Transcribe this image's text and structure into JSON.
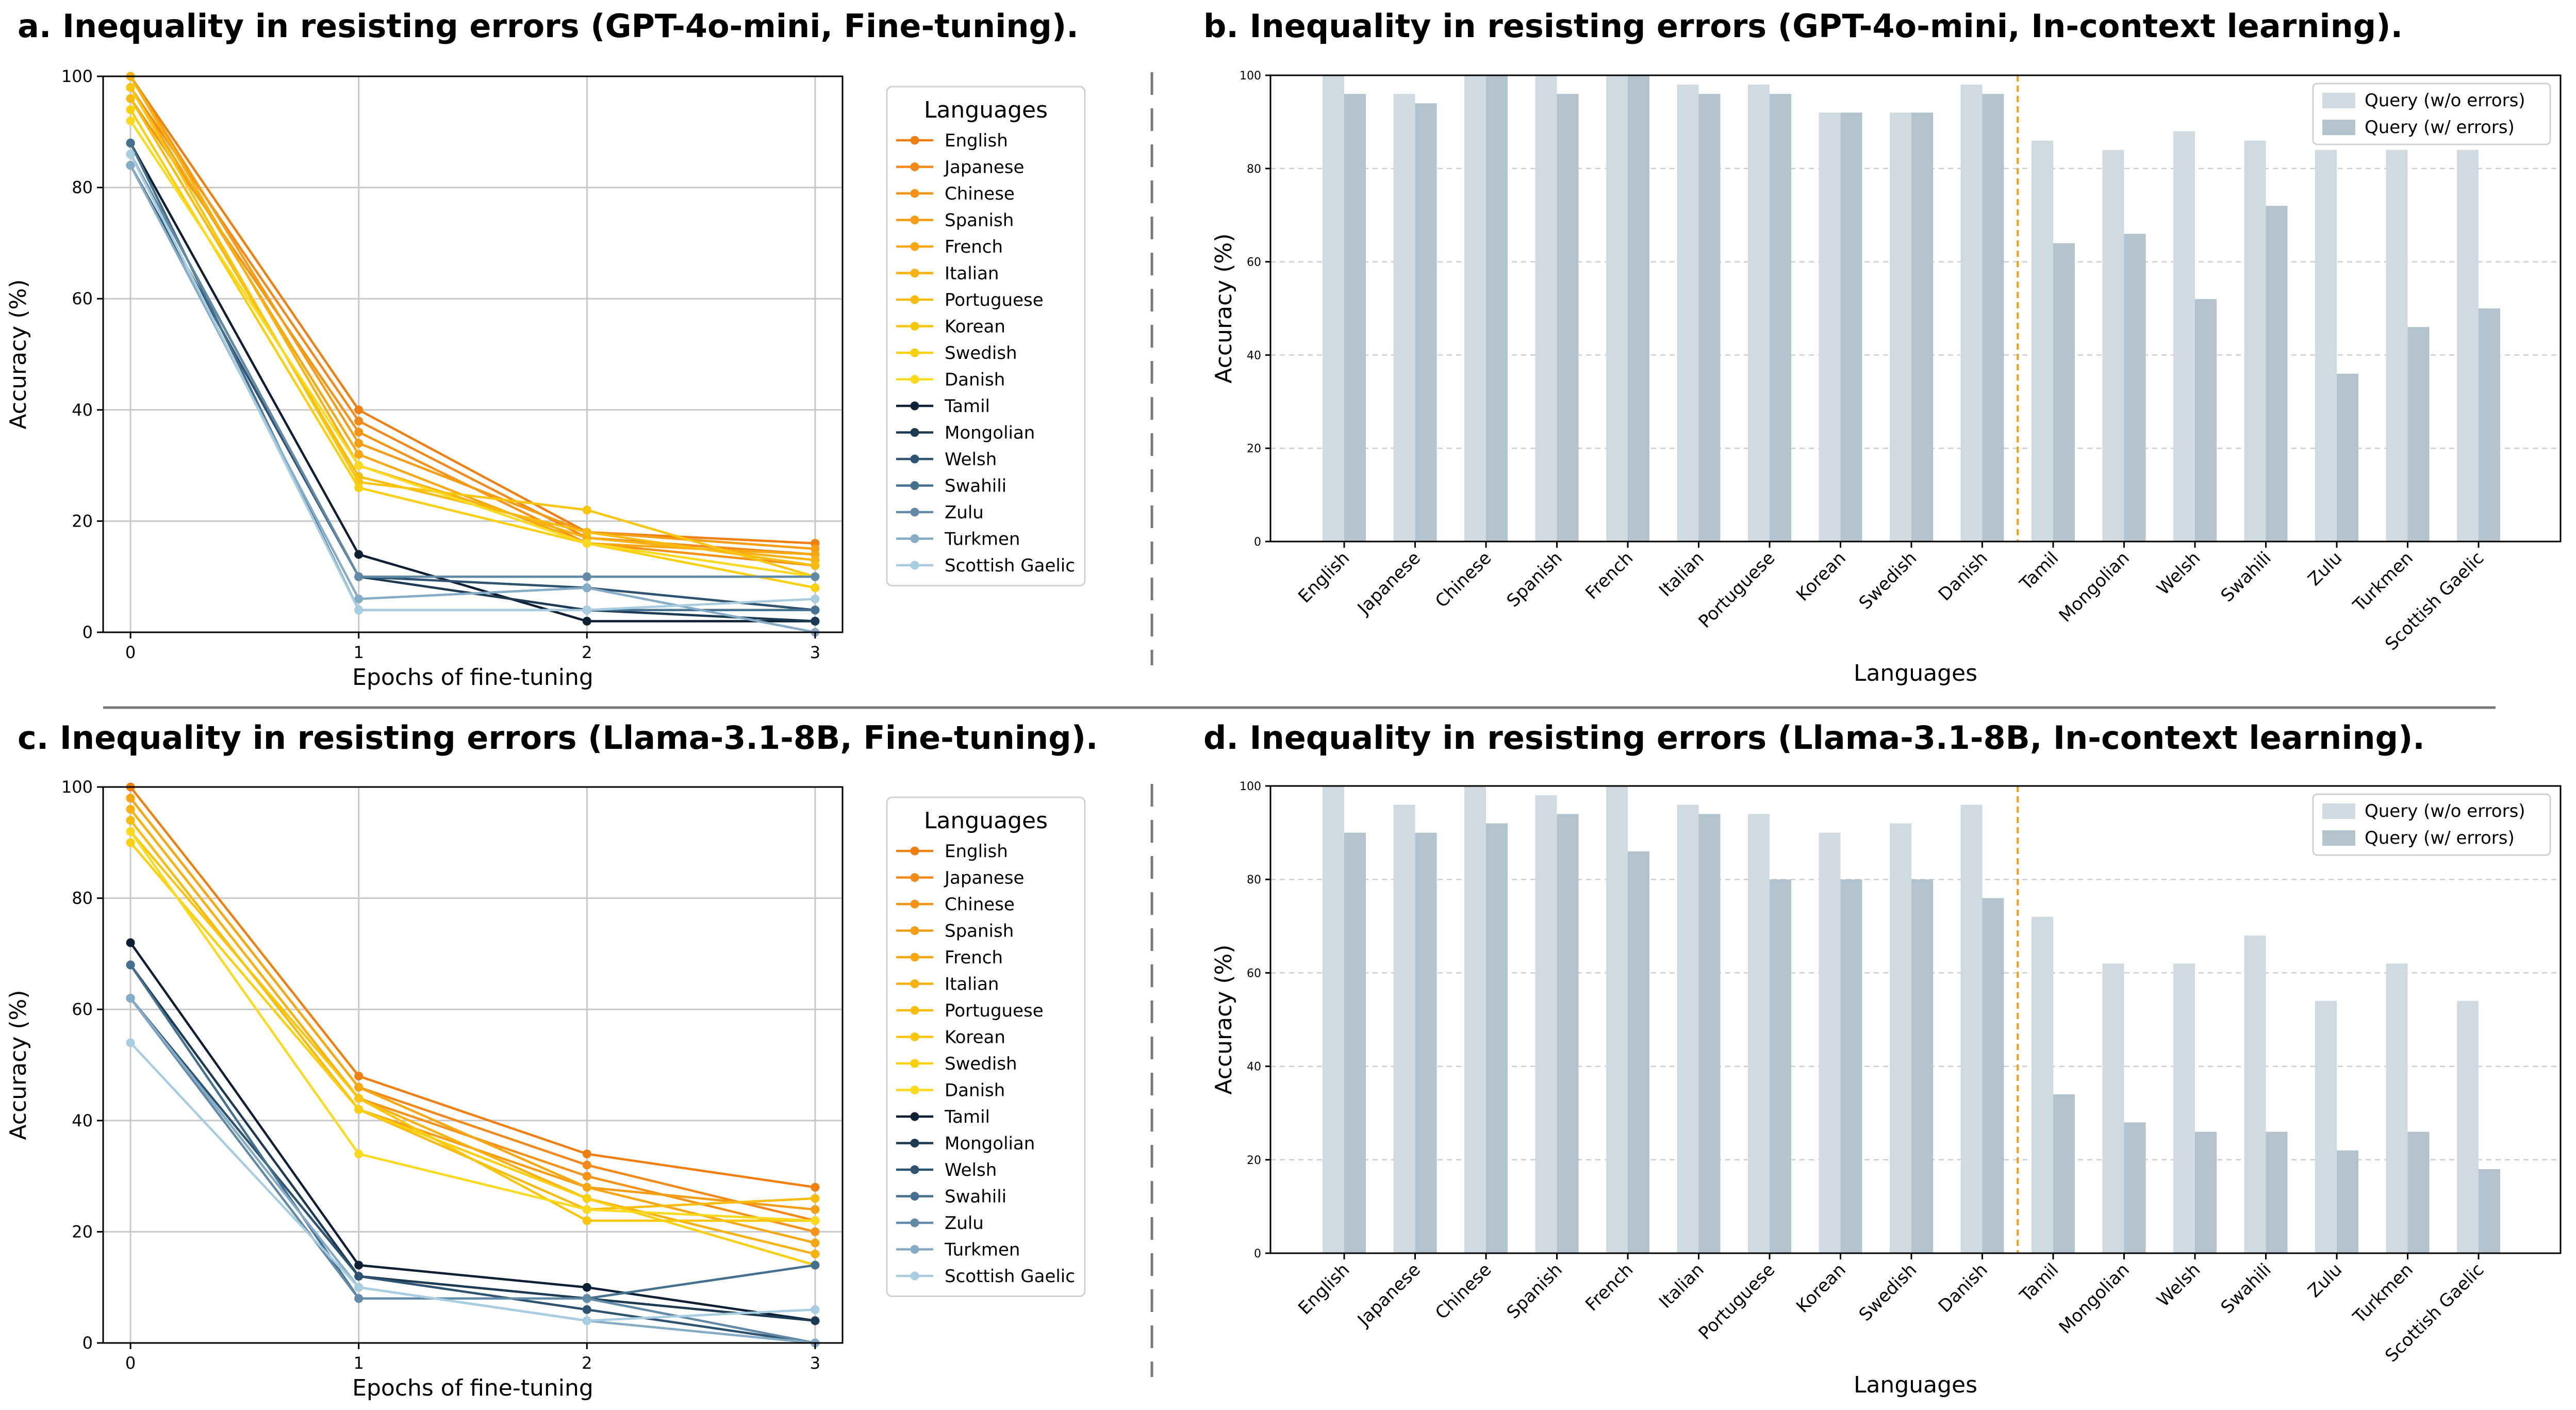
{
  "chart_data": [
    {
      "type": "line",
      "title": "a. Inequality in resisting errors (GPT-4o-mini, Fine-tuning).",
      "xlabel": "Epochs of fine-tuning",
      "ylabel": "Accuracy (%)",
      "x": [
        0,
        1,
        2,
        3
      ],
      "xticks": [
        "0",
        "1",
        "2",
        "3"
      ],
      "yticks": [
        "0",
        "20",
        "40",
        "60",
        "80",
        "100"
      ],
      "ylim": [
        0,
        100
      ],
      "grid": true,
      "legend_title": "Languages",
      "legend_position": "outside right",
      "series": [
        {
          "name": "English",
          "color": "#F07F12",
          "values": [
            100,
            40,
            18,
            16
          ]
        },
        {
          "name": "Japanese",
          "color": "#F3891B",
          "values": [
            98,
            38,
            17,
            14
          ]
        },
        {
          "name": "Chinese",
          "color": "#F49318",
          "values": [
            96,
            36,
            16,
            12
          ]
        },
        {
          "name": "Spanish",
          "color": "#F59D15",
          "values": [
            100,
            34,
            18,
            15
          ]
        },
        {
          "name": "French",
          "color": "#F6A712",
          "values": [
            98,
            32,
            16,
            14
          ]
        },
        {
          "name": "Italian",
          "color": "#F7B110",
          "values": [
            100,
            30,
            17,
            13
          ]
        },
        {
          "name": "Portuguese",
          "color": "#F8BB0F",
          "values": [
            96,
            28,
            18,
            12
          ]
        },
        {
          "name": "Korean",
          "color": "#F9C50E",
          "values": [
            98,
            27,
            22,
            10
          ]
        },
        {
          "name": "Swedish",
          "color": "#FACF0E",
          "values": [
            94,
            26,
            16,
            8
          ]
        },
        {
          "name": "Danish",
          "color": "#FBD91F",
          "values": [
            92,
            30,
            16,
            10
          ]
        },
        {
          "name": "Tamil",
          "color": "#0D1F33",
          "values": [
            88,
            14,
            2,
            2
          ]
        },
        {
          "name": "Mongolian",
          "color": "#1C3A52",
          "values": [
            86,
            10,
            4,
            2
          ]
        },
        {
          "name": "Welsh",
          "color": "#2E5370",
          "values": [
            84,
            10,
            8,
            4
          ]
        },
        {
          "name": "Swahili",
          "color": "#45708E",
          "values": [
            88,
            4,
            4,
            4
          ]
        },
        {
          "name": "Zulu",
          "color": "#6289A6",
          "values": [
            86,
            10,
            10,
            10
          ]
        },
        {
          "name": "Turkmen",
          "color": "#85ABC6",
          "values": [
            84,
            6,
            8,
            0
          ]
        },
        {
          "name": "Scottish Gaelic",
          "color": "#A8CCE0",
          "values": [
            86,
            4,
            4,
            6
          ]
        }
      ]
    },
    {
      "type": "bar",
      "title": "b. Inequality in resisting errors (GPT-4o-mini, In-context learning).",
      "xlabel": "Languages",
      "ylabel": "Accuracy (%)",
      "yticks": [
        "0",
        "20",
        "40",
        "60",
        "80",
        "100"
      ],
      "ylim": [
        0,
        100
      ],
      "grid": "horizontal dashed",
      "legend_position": "top-right",
      "divider_after": "Danish",
      "divider_color": "#F59D15",
      "categories": [
        "English",
        "Japanese",
        "Chinese",
        "Spanish",
        "French",
        "Italian",
        "Portuguese",
        "Korean",
        "Swedish",
        "Danish",
        "Tamil",
        "Mongolian",
        "Welsh",
        "Swahili",
        "Zulu",
        "Turkmen",
        "Scottish Gaelic"
      ],
      "series": [
        {
          "name": "Query (w/o errors)",
          "color": "#D0DBE1",
          "values": [
            100,
            96,
            100,
            100,
            100,
            98,
            98,
            92,
            92,
            98,
            86,
            84,
            88,
            86,
            84,
            84,
            84
          ]
        },
        {
          "name": "Query (w/ errors)",
          "color": "#B2C3CE",
          "values": [
            96,
            94,
            100,
            96,
            100,
            96,
            96,
            92,
            92,
            96,
            64,
            66,
            52,
            72,
            36,
            46,
            50
          ]
        }
      ]
    },
    {
      "type": "line",
      "title": "c. Inequality in resisting errors (Llama-3.1-8B, Fine-tuning).",
      "xlabel": "Epochs of fine-tuning",
      "ylabel": "Accuracy (%)",
      "x": [
        0,
        1,
        2,
        3
      ],
      "xticks": [
        "0",
        "1",
        "2",
        "3"
      ],
      "yticks": [
        "0",
        "20",
        "40",
        "60",
        "80",
        "100"
      ],
      "ylim": [
        0,
        100
      ],
      "grid": true,
      "legend_title": "Languages",
      "legend_position": "outside right",
      "series": [
        {
          "name": "English",
          "color": "#F07F12",
          "values": [
            100,
            48,
            34,
            28
          ]
        },
        {
          "name": "Japanese",
          "color": "#F3891B",
          "values": [
            98,
            46,
            32,
            22
          ]
        },
        {
          "name": "Chinese",
          "color": "#F49318",
          "values": [
            96,
            44,
            30,
            20
          ]
        },
        {
          "name": "Spanish",
          "color": "#F59D15",
          "values": [
            94,
            42,
            28,
            24
          ]
        },
        {
          "name": "French",
          "color": "#F6A712",
          "values": [
            98,
            46,
            28,
            18
          ]
        },
        {
          "name": "Italian",
          "color": "#F7B110",
          "values": [
            96,
            44,
            26,
            16
          ]
        },
        {
          "name": "Portuguese",
          "color": "#F8BB0F",
          "values": [
            94,
            42,
            24,
            26
          ]
        },
        {
          "name": "Korean",
          "color": "#F9C50E",
          "values": [
            92,
            44,
            22,
            22
          ]
        },
        {
          "name": "Swedish",
          "color": "#FACF0E",
          "values": [
            90,
            42,
            26,
            14
          ]
        },
        {
          "name": "Danish",
          "color": "#FBD91F",
          "values": [
            92,
            34,
            24,
            22
          ]
        },
        {
          "name": "Tamil",
          "color": "#0D1F33",
          "values": [
            72,
            14,
            10,
            4
          ]
        },
        {
          "name": "Mongolian",
          "color": "#1C3A52",
          "values": [
            68,
            12,
            8,
            4
          ]
        },
        {
          "name": "Welsh",
          "color": "#2E5370",
          "values": [
            62,
            12,
            6,
            0
          ]
        },
        {
          "name": "Swahili",
          "color": "#45708E",
          "values": [
            68,
            8,
            8,
            14
          ]
        },
        {
          "name": "Zulu",
          "color": "#6289A6",
          "values": [
            62,
            8,
            8,
            0
          ]
        },
        {
          "name": "Turkmen",
          "color": "#85ABC6",
          "values": [
            62,
            10,
            4,
            0
          ]
        },
        {
          "name": "Scottish Gaelic",
          "color": "#A8CCE0",
          "values": [
            54,
            10,
            4,
            6
          ]
        }
      ]
    },
    {
      "type": "bar",
      "title": "d. Inequality in resisting errors (Llama-3.1-8B, In-context learning).",
      "xlabel": "Languages",
      "ylabel": "Accuracy (%)",
      "yticks": [
        "0",
        "20",
        "40",
        "60",
        "80",
        "100"
      ],
      "ylim": [
        0,
        100
      ],
      "grid": "horizontal dashed",
      "legend_position": "top-right",
      "divider_after": "Danish",
      "divider_color": "#F59D15",
      "categories": [
        "English",
        "Japanese",
        "Chinese",
        "Spanish",
        "French",
        "Italian",
        "Portuguese",
        "Korean",
        "Swedish",
        "Danish",
        "Tamil",
        "Mongolian",
        "Welsh",
        "Swahili",
        "Zulu",
        "Turkmen",
        "Scottish Gaelic"
      ],
      "series": [
        {
          "name": "Query (w/o errors)",
          "color": "#D0DBE1",
          "values": [
            100,
            96,
            100,
            98,
            100,
            96,
            94,
            90,
            92,
            96,
            72,
            62,
            62,
            68,
            54,
            62,
            54
          ]
        },
        {
          "name": "Query (w/ errors)",
          "color": "#B2C3CE",
          "values": [
            90,
            90,
            92,
            94,
            86,
            94,
            80,
            80,
            80,
            76,
            34,
            28,
            26,
            26,
            22,
            26,
            18
          ]
        }
      ]
    }
  ]
}
